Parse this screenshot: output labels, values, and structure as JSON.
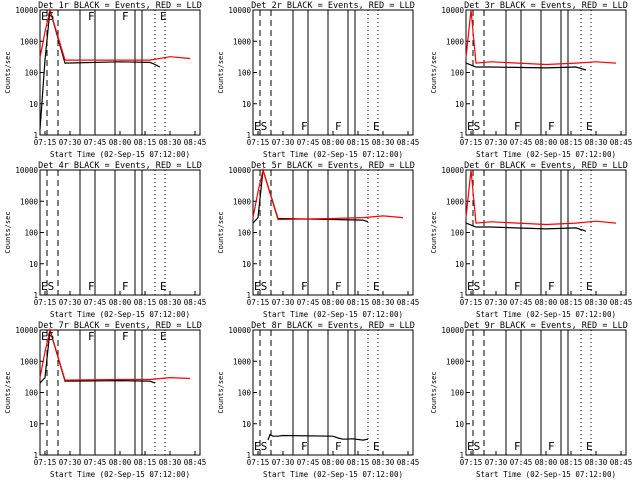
{
  "chart_data": [
    {
      "type": "line",
      "title": "Det 1r BLACK = Events, RED = LLD",
      "xlabel": "Start Time (02-Sep-15 07:12:00)",
      "ylabel": "Counts/sec",
      "y_ticks": [
        "1",
        "10",
        "100",
        "1000",
        "10000"
      ],
      "ylim": [
        1,
        10000
      ],
      "log_y": true,
      "markers": [
        "ES",
        "F",
        "F",
        "E"
      ],
      "series": [
        {
          "color": "#000000",
          "values": [
            [
              7.2,
              1.5
            ],
            [
              7.25,
              250
            ],
            [
              7.3,
              15000
            ],
            [
              7.45,
              200
            ],
            [
              8.0,
              220
            ],
            [
              8.3,
              210
            ],
            [
              8.35,
              180
            ],
            [
              8.4,
              150
            ]
          ]
        },
        {
          "color": "#ff0000",
          "values": [
            [
              7.2,
              300
            ],
            [
              7.25,
              2000
            ],
            [
              7.3,
              15000
            ],
            [
              7.45,
              250
            ],
            [
              8.0,
              250
            ],
            [
              8.3,
              250
            ],
            [
              8.5,
              320
            ],
            [
              8.7,
              280
            ]
          ]
        }
      ]
    },
    {
      "type": "line",
      "title": "Det 2r BLACK = Events, RED = LLD",
      "xlabel": "Start Time (02-Sep-15 07:12:00)",
      "ylabel": "Counts/sec",
      "y_ticks": [
        "1",
        "10",
        "100",
        "1000",
        "10000"
      ],
      "ylim": [
        1,
        10000
      ],
      "log_y": true,
      "markers": [
        "ES",
        "F",
        "F",
        "E"
      ],
      "series": []
    },
    {
      "type": "line",
      "title": "Det 3r BLACK = Events, RED = LLD",
      "xlabel": "Start Time (02-Sep-15 07:12:00)",
      "ylabel": "Counts/sec",
      "y_ticks": [
        "1",
        "10",
        "100",
        "1000",
        "10000"
      ],
      "ylim": [
        1,
        10000
      ],
      "log_y": true,
      "markers": [
        "ES",
        "F",
        "F",
        "E"
      ],
      "series": [
        {
          "color": "#000000",
          "values": [
            [
              7.2,
              200
            ],
            [
              7.3,
              150
            ],
            [
              7.45,
              150
            ],
            [
              8.0,
              140
            ],
            [
              8.3,
              150
            ],
            [
              8.4,
              120
            ]
          ]
        },
        {
          "color": "#ff0000",
          "values": [
            [
              7.2,
              300
            ],
            [
              7.25,
              12000
            ],
            [
              7.3,
              200
            ],
            [
              7.45,
              220
            ],
            [
              8.0,
              180
            ],
            [
              8.3,
              200
            ],
            [
              8.5,
              220
            ],
            [
              8.7,
              200
            ]
          ]
        }
      ]
    },
    {
      "type": "line",
      "title": "Det 4r BLACK = Events, RED = LLD",
      "xlabel": "Start Time (02-Sep-15 07:12:00)",
      "ylabel": "Counts/sec",
      "y_ticks": [
        "1",
        "10",
        "100",
        "1000",
        "10000"
      ],
      "ylim": [
        1,
        10000
      ],
      "log_y": true,
      "markers": [
        "ES",
        "F",
        "F",
        "E"
      ],
      "series": []
    },
    {
      "type": "line",
      "title": "Det 5r BLACK = Events, RED = LLD",
      "xlabel": "Start Time (02-Sep-15 07:12:00)",
      "ylabel": "Counts/sec",
      "y_ticks": [
        "1",
        "10",
        "100",
        "1000",
        "10000"
      ],
      "ylim": [
        1,
        10000
      ],
      "log_y": true,
      "markers": [
        "ES",
        "F",
        "F",
        "E"
      ],
      "series": [
        {
          "color": "#000000",
          "values": [
            [
              7.2,
              200
            ],
            [
              7.25,
              300
            ],
            [
              7.3,
              12000
            ],
            [
              7.45,
              280
            ],
            [
              8.0,
              260
            ],
            [
              8.3,
              250
            ],
            [
              8.35,
              220
            ]
          ]
        },
        {
          "color": "#ff0000",
          "values": [
            [
              7.2,
              300
            ],
            [
              7.25,
              2000
            ],
            [
              7.3,
              12000
            ],
            [
              7.45,
              260
            ],
            [
              8.0,
              280
            ],
            [
              8.3,
              300
            ],
            [
              8.5,
              340
            ],
            [
              8.7,
              300
            ]
          ]
        }
      ]
    },
    {
      "type": "line",
      "title": "Det 6r BLACK = Events, RED = LLD",
      "xlabel": "Start Time (02-Sep-15 07:12:00)",
      "ylabel": "Counts/sec",
      "y_ticks": [
        "1",
        "10",
        "100",
        "1000",
        "10000"
      ],
      "ylim": [
        1,
        10000
      ],
      "log_y": true,
      "markers": [
        "ES",
        "F",
        "F",
        "E"
      ],
      "series": [
        {
          "color": "#000000",
          "values": [
            [
              7.2,
              200
            ],
            [
              7.3,
              150
            ],
            [
              7.45,
              150
            ],
            [
              8.0,
              130
            ],
            [
              8.3,
              140
            ],
            [
              8.4,
              110
            ]
          ]
        },
        {
          "color": "#ff0000",
          "values": [
            [
              7.2,
              300
            ],
            [
              7.25,
              12000
            ],
            [
              7.3,
              200
            ],
            [
              7.45,
              220
            ],
            [
              8.0,
              180
            ],
            [
              8.3,
              200
            ],
            [
              8.5,
              230
            ],
            [
              8.7,
              200
            ]
          ]
        }
      ]
    },
    {
      "type": "line",
      "title": "Det 7r BLACK = Events, RED = LLD",
      "xlabel": "Start Time (02-Sep-15 07:12:00)",
      "ylabel": "Counts/sec",
      "y_ticks": [
        "1",
        "10",
        "100",
        "1000",
        "10000"
      ],
      "ylim": [
        1,
        10000
      ],
      "log_y": true,
      "markers": [
        "ES",
        "F",
        "F",
        "E"
      ],
      "series": [
        {
          "color": "#000000",
          "values": [
            [
              7.2,
              200
            ],
            [
              7.25,
              300
            ],
            [
              7.3,
              12000
            ],
            [
              7.45,
              230
            ],
            [
              8.0,
              240
            ],
            [
              8.3,
              230
            ],
            [
              8.35,
              200
            ]
          ]
        },
        {
          "color": "#ff0000",
          "values": [
            [
              7.2,
              300
            ],
            [
              7.25,
              2000
            ],
            [
              7.3,
              12000
            ],
            [
              7.45,
              250
            ],
            [
              8.0,
              260
            ],
            [
              8.3,
              260
            ],
            [
              8.5,
              300
            ],
            [
              8.7,
              280
            ]
          ]
        }
      ]
    },
    {
      "type": "line",
      "title": "Det 8r BLACK = Events, RED = LLD",
      "xlabel": "Start Time (02-Sep-15 07:12:00)",
      "ylabel": "Counts/sec",
      "y_ticks": [
        "1",
        "10",
        "100",
        "1000",
        "10000"
      ],
      "ylim": [
        1,
        10000
      ],
      "log_y": true,
      "markers": [
        "ES",
        "F",
        "F",
        "E"
      ],
      "series": [
        {
          "color": "#000000",
          "values": [
            [
              7.35,
              3
            ],
            [
              7.37,
              4.5
            ],
            [
              7.4,
              4
            ],
            [
              7.45,
              4
            ],
            [
              7.5,
              4.2
            ],
            [
              8.0,
              4
            ],
            [
              8.05,
              3.5
            ],
            [
              8.1,
              3.2
            ],
            [
              8.2,
              3.3
            ],
            [
              8.3,
              3
            ],
            [
              8.35,
              3.2
            ]
          ]
        }
      ]
    },
    {
      "type": "line",
      "title": "Det 9r BLACK = Events, RED = LLD",
      "xlabel": "Start Time (02-Sep-15 07:12:00)",
      "ylabel": "Counts/sec",
      "y_ticks": [
        "1",
        "10",
        "100",
        "1000",
        "10000"
      ],
      "ylim": [
        1,
        10000
      ],
      "log_y": true,
      "markers": [
        "ES",
        "F",
        "F",
        "E"
      ],
      "series": []
    }
  ],
  "x_ticks": [
    "07:15",
    "07:30",
    "07:45",
    "08:00",
    "08:15",
    "08:30",
    "08:45"
  ],
  "colors": {
    "events": "#000000",
    "lld": "#ff0000"
  }
}
